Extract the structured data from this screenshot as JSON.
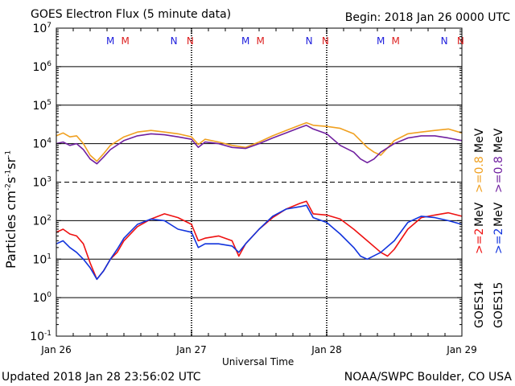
{
  "header": {
    "title": "GOES Electron Flux (5 minute data)",
    "begin": "Begin: 2018 Jan 26 0000 UTC"
  },
  "footer": {
    "updated": "Updated 2018 Jan 28 23:56:02 UTC",
    "credit": "NOAA/SWPC Boulder, CO USA"
  },
  "legend": {
    "goes14": "GOES14",
    "goes15": "GOES15",
    "g14_low": ">=2",
    "g14_high": ">=0.8",
    "g15_low": ">=2",
    "g15_high": ">=0.8",
    "unit": "MeV"
  },
  "colors": {
    "goes14_low": "#ee1111",
    "goes14_high": "#f0a020",
    "goes15_low": "#1133dd",
    "goes15_high": "#7020a0",
    "m_blue": "#2020dd",
    "m_red": "#dd2020"
  },
  "chart_data": {
    "type": "line",
    "y_scale": "log",
    "ylim": [
      0.1,
      10000000
    ],
    "y_ticks": [
      {
        "value": 0.1,
        "base": "10",
        "exp": "-1"
      },
      {
        "value": 1,
        "base": "10",
        "exp": "0"
      },
      {
        "value": 10,
        "base": "10",
        "exp": "1"
      },
      {
        "value": 100,
        "base": "10",
        "exp": "2"
      },
      {
        "value": 1000,
        "base": "10",
        "exp": "3"
      },
      {
        "value": 10000,
        "base": "10",
        "exp": "4"
      },
      {
        "value": 100000,
        "base": "10",
        "exp": "5"
      },
      {
        "value": 1000000,
        "base": "10",
        "exp": "6"
      },
      {
        "value": 10000000,
        "base": "10",
        "exp": "7"
      }
    ],
    "alert_threshold": 1000,
    "x_ticks": [
      "Jan 26",
      "Jan 27",
      "Jan 28",
      "Jan 29"
    ],
    "xlabel": "Universal Time",
    "ylabel_main": "Particles cm",
    "ylabel_exp1": "-2",
    "ylabel_s": "s",
    "ylabel_exp2": "-1",
    "ylabel_sr": "sr",
    "ylabel_exp3": "-1",
    "markers": [
      {
        "day": 0.4,
        "label": "M",
        "color": "m_blue"
      },
      {
        "day": 0.51,
        "label": "M",
        "color": "m_red"
      },
      {
        "day": 0.87,
        "label": "N",
        "color": "m_blue"
      },
      {
        "day": 0.99,
        "label": "N",
        "color": "m_red"
      },
      {
        "day": 1.4,
        "label": "M",
        "color": "m_blue"
      },
      {
        "day": 1.51,
        "label": "M",
        "color": "m_red"
      },
      {
        "day": 1.87,
        "label": "N",
        "color": "m_blue"
      },
      {
        "day": 1.99,
        "label": "N",
        "color": "m_red"
      },
      {
        "day": 2.4,
        "label": "M",
        "color": "m_blue"
      },
      {
        "day": 2.51,
        "label": "M",
        "color": "m_red"
      },
      {
        "day": 2.87,
        "label": "N",
        "color": "m_blue"
      },
      {
        "day": 2.99,
        "label": "N",
        "color": "m_red"
      }
    ],
    "series": [
      {
        "name": "GOES14 >=0.8 MeV",
        "color": "goes14_high",
        "x": [
          0,
          0.05,
          0.1,
          0.15,
          0.2,
          0.25,
          0.3,
          0.35,
          0.4,
          0.5,
          0.6,
          0.7,
          0.8,
          0.9,
          1.0,
          1.05,
          1.1,
          1.2,
          1.3,
          1.4,
          1.5,
          1.6,
          1.7,
          1.8,
          1.85,
          1.9,
          2.0,
          2.1,
          2.2,
          2.25,
          2.3,
          2.35,
          2.4,
          2.5,
          2.6,
          2.7,
          2.8,
          2.9,
          3.0
        ],
        "y": [
          16000,
          19000,
          15000,
          16000,
          10000,
          5000,
          3500,
          5500,
          9000,
          15000,
          20000,
          22000,
          20000,
          18000,
          15000,
          9500,
          13000,
          11000,
          9000,
          8000,
          11000,
          16000,
          22000,
          30000,
          35000,
          30000,
          28000,
          25000,
          18000,
          12000,
          8000,
          6000,
          5000,
          12000,
          18000,
          20000,
          22000,
          24000,
          19000
        ]
      },
      {
        "name": "GOES15 >=0.8 MeV",
        "color": "goes15_high",
        "x": [
          0,
          0.05,
          0.1,
          0.15,
          0.2,
          0.25,
          0.3,
          0.35,
          0.4,
          0.5,
          0.6,
          0.7,
          0.8,
          0.9,
          1.0,
          1.05,
          1.1,
          1.2,
          1.3,
          1.4,
          1.5,
          1.6,
          1.7,
          1.8,
          1.85,
          1.9,
          2.0,
          2.1,
          2.2,
          2.25,
          2.3,
          2.35,
          2.4,
          2.5,
          2.6,
          2.7,
          2.8,
          2.9,
          3.0
        ],
        "y": [
          10000,
          11000,
          9000,
          10000,
          7000,
          4000,
          3000,
          4500,
          7000,
          12000,
          16000,
          18000,
          17000,
          15000,
          13000,
          8000,
          11000,
          10000,
          8000,
          7500,
          10000,
          14000,
          19000,
          26000,
          30000,
          24000,
          18000,
          9000,
          6000,
          4000,
          3200,
          4000,
          6000,
          10000,
          14000,
          16000,
          16000,
          14000,
          12000
        ]
      },
      {
        "name": "GOES14 >=2 MeV",
        "color": "goes14_low",
        "x": [
          0,
          0.05,
          0.1,
          0.15,
          0.2,
          0.25,
          0.3,
          0.35,
          0.4,
          0.45,
          0.5,
          0.6,
          0.7,
          0.8,
          0.9,
          1.0,
          1.05,
          1.1,
          1.2,
          1.3,
          1.35,
          1.4,
          1.5,
          1.6,
          1.7,
          1.8,
          1.85,
          1.9,
          2.0,
          2.1,
          2.2,
          2.3,
          2.4,
          2.45,
          2.5,
          2.6,
          2.7,
          2.8,
          2.9,
          3.0
        ],
        "y": [
          50,
          60,
          45,
          40,
          25,
          8,
          3,
          5,
          10,
          15,
          30,
          70,
          110,
          150,
          120,
          80,
          30,
          35,
          40,
          30,
          12,
          25,
          60,
          120,
          200,
          280,
          320,
          150,
          140,
          110,
          60,
          30,
          15,
          12,
          18,
          60,
          120,
          140,
          160,
          130
        ]
      },
      {
        "name": "GOES15 >=2 MeV",
        "color": "goes15_low",
        "x": [
          0,
          0.05,
          0.1,
          0.15,
          0.2,
          0.25,
          0.3,
          0.35,
          0.4,
          0.45,
          0.5,
          0.6,
          0.7,
          0.8,
          0.9,
          1.0,
          1.05,
          1.1,
          1.2,
          1.3,
          1.35,
          1.4,
          1.5,
          1.6,
          1.7,
          1.8,
          1.85,
          1.9,
          2.0,
          2.1,
          2.2,
          2.25,
          2.3,
          2.4,
          2.5,
          2.6,
          2.7,
          2.8,
          2.9,
          3.0
        ],
        "y": [
          25,
          30,
          20,
          15,
          10,
          6,
          3,
          5,
          10,
          18,
          35,
          80,
          110,
          100,
          60,
          50,
          20,
          25,
          25,
          22,
          15,
          25,
          60,
          130,
          200,
          230,
          250,
          120,
          90,
          45,
          20,
          12,
          10,
          15,
          30,
          90,
          130,
          120,
          100,
          80
        ]
      }
    ]
  }
}
